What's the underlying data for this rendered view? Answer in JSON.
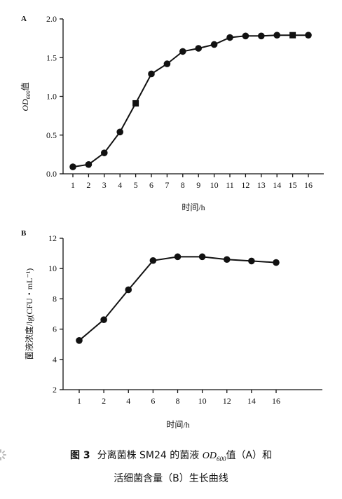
{
  "figure": {
    "caption_line1_prefix": "图 3",
    "caption_line1_a": "分离菌株 SM24 的菌液 ",
    "caption_line1_od": "OD",
    "caption_line1_sub": "600",
    "caption_line1_b": "值（A）和",
    "caption_line2": "活细菌含量（B）生长曲线"
  },
  "chart_data": [
    {
      "panel": "A",
      "type": "line",
      "xlabel": "时间/h",
      "ylabel_main": "OD",
      "ylabel_sub": "600",
      "ylabel_suffix": "值",
      "ylim": [
        0,
        2.0
      ],
      "yticks": [
        "0.0",
        "0.5",
        "1.0",
        "1.5",
        "2.0"
      ],
      "xticks": [
        "1",
        "2",
        "3",
        "4",
        "5",
        "6",
        "7",
        "8",
        "9",
        "10",
        "11",
        "12",
        "13",
        "14",
        "15",
        "16"
      ],
      "x": [
        1,
        2,
        3,
        4,
        5,
        6,
        7,
        8,
        9,
        10,
        11,
        12,
        13,
        14,
        15,
        16
      ],
      "y": [
        0.09,
        0.12,
        0.27,
        0.54,
        0.91,
        1.29,
        1.42,
        1.58,
        1.62,
        1.67,
        1.76,
        1.78,
        1.78,
        1.79,
        1.79,
        1.79
      ],
      "marker_shapes": [
        "circle",
        "circle",
        "circle",
        "circle",
        "square",
        "circle",
        "circle",
        "circle",
        "circle",
        "circle",
        "circle",
        "circle",
        "circle",
        "circle",
        "square",
        "circle"
      ],
      "grid": false,
      "color": "#111111"
    },
    {
      "panel": "B",
      "type": "line",
      "xlabel": "时间/h",
      "ylabel": "菌液浓度/lg(CFU・mL⁻¹)",
      "ylim": [
        2,
        12
      ],
      "yticks": [
        "2",
        "4",
        "6",
        "8",
        "10",
        "12"
      ],
      "xticks": [
        "1",
        "2",
        "4",
        "6",
        "8",
        "10",
        "12",
        "14",
        "16"
      ],
      "x": [
        1,
        2,
        4,
        6,
        8,
        10,
        12,
        14,
        16
      ],
      "y": [
        5.25,
        6.62,
        8.6,
        10.53,
        10.78,
        10.78,
        10.6,
        10.5,
        10.4
      ],
      "grid": false,
      "color": "#111111"
    }
  ]
}
